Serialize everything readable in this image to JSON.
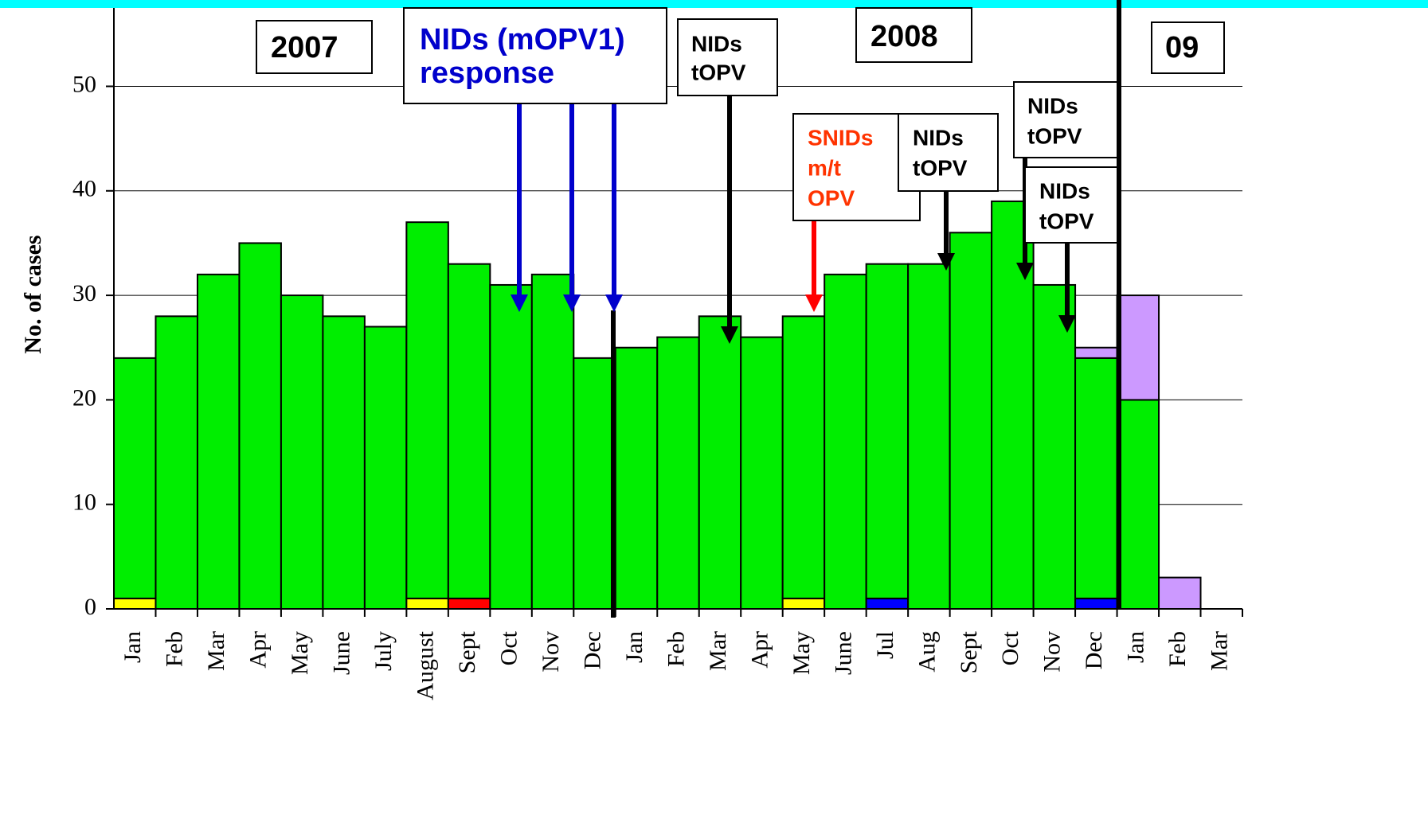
{
  "chart_data": {
    "type": "bar",
    "stacked": true,
    "y_label": "No. of cases",
    "categories": [
      "Jan",
      "Feb",
      "Mar",
      "Apr",
      "May",
      "June",
      "July",
      "August",
      "Sept",
      "Oct",
      "Nov",
      "Dec",
      "Jan",
      "Feb",
      "Mar",
      "Apr",
      "May",
      "June",
      "Jul",
      "Aug",
      "Sept",
      "Oct",
      "Nov",
      "Dec",
      "Jan",
      "Feb",
      "Mar"
    ],
    "series": [
      {
        "color": "#ffff00",
        "values": [
          1,
          null,
          null,
          null,
          null,
          null,
          null,
          1,
          null,
          null,
          null,
          null,
          null,
          null,
          null,
          null,
          1,
          null,
          null,
          null,
          null,
          null,
          null,
          null,
          null,
          null,
          null
        ]
      },
      {
        "color": "#ff0000",
        "values": [
          null,
          null,
          null,
          null,
          null,
          null,
          null,
          null,
          1,
          null,
          null,
          null,
          null,
          null,
          null,
          null,
          null,
          null,
          null,
          null,
          null,
          null,
          null,
          null,
          null,
          null,
          null
        ]
      },
      {
        "color": "#0000ff",
        "values": [
          null,
          null,
          null,
          null,
          null,
          null,
          null,
          null,
          null,
          null,
          null,
          null,
          null,
          null,
          null,
          null,
          null,
          null,
          1,
          null,
          null,
          null,
          null,
          1,
          null,
          null,
          null
        ]
      },
      {
        "color": "#00ee00",
        "values": [
          23,
          28,
          32,
          35,
          30,
          28,
          27,
          36,
          32,
          31,
          32,
          24,
          25,
          26,
          28,
          26,
          27,
          32,
          32,
          33,
          36,
          39,
          31,
          23,
          20,
          null,
          null
        ]
      },
      {
        "color": "#cc99ff",
        "values": [
          null,
          null,
          null,
          null,
          null,
          null,
          null,
          null,
          null,
          null,
          null,
          null,
          null,
          null,
          null,
          null,
          null,
          null,
          null,
          null,
          null,
          null,
          null,
          1,
          10,
          3,
          null
        ]
      }
    ],
    "ylim": [
      0,
      57.5
    ],
    "yticks": [
      0,
      10,
      20,
      30,
      40,
      50
    ],
    "grid": true,
    "annotations": [
      {
        "lines": [
          "2007"
        ],
        "color": "#000000"
      },
      {
        "lines": [
          "NIDs (mOPV1)",
          "response"
        ],
        "color": "#0000cc"
      },
      {
        "lines": [
          "NIDs",
          "tOPV"
        ],
        "color": "#000000"
      },
      {
        "lines": [
          "2008"
        ],
        "color": "#000000"
      },
      {
        "lines": [
          "09"
        ],
        "color": "#000000"
      },
      {
        "lines": [
          "SNIDs",
          "m/t",
          "OPV"
        ],
        "color": "#ff3300"
      },
      {
        "lines": [
          "NIDs",
          "tOPV"
        ],
        "color": "#000000"
      },
      {
        "lines": [
          "NIDs",
          "tOPV"
        ],
        "color": "#000000"
      },
      {
        "lines": [
          "NIDs",
          "tOPV"
        ],
        "color": "#000000"
      }
    ]
  }
}
